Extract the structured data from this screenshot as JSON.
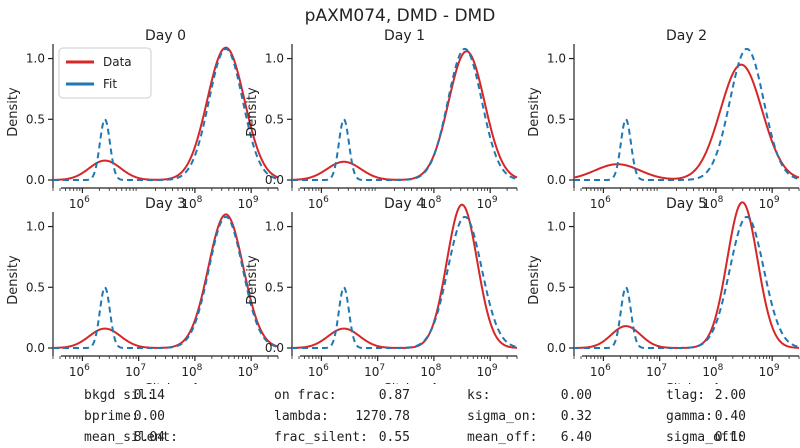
{
  "figure_title": "pAXM074, DMD - DMD",
  "colors": {
    "data": "#d62728",
    "fit": "#1f77b4",
    "axis": "#222222",
    "text": "#222222"
  },
  "legend": {
    "entries": [
      "Data",
      "Fit"
    ],
    "location": "upper-left of first panel"
  },
  "chart_data": [
    {
      "type": "line",
      "title": "Day 0",
      "ylabel": "Density",
      "xlabel": "",
      "xscale": "log",
      "xlim": [
        300000,
        3000000000
      ],
      "ylim": [
        0,
        1.12
      ],
      "xticks": [
        "10^6",
        "10^8",
        "10^9"
      ],
      "yticks": [
        "0.0",
        "0.5",
        "1.0"
      ],
      "series": [
        {
          "name": "Data",
          "style": "solid",
          "peaks": [
            {
              "center_log10": 6.4,
              "width": 0.28,
              "height": 0.16
            },
            {
              "center_log10": 8.55,
              "width": 0.33,
              "height": 1.09
            }
          ]
        },
        {
          "name": "Fit",
          "style": "dashed",
          "peaks": [
            {
              "center_log10": 6.4,
              "width": 0.09,
              "height": 0.5
            },
            {
              "center_log10": 8.55,
              "width": 0.3,
              "height": 1.08
            }
          ]
        }
      ]
    },
    {
      "type": "line",
      "title": "Day 1",
      "ylabel": "Density",
      "xlabel": "",
      "xscale": "log",
      "xlim": [
        300000,
        3000000000
      ],
      "ylim": [
        0,
        1.12
      ],
      "xticks": [
        "10^6",
        "10^8",
        "10^9"
      ],
      "yticks": [
        "0.0",
        "0.5",
        "1.0"
      ],
      "series": [
        {
          "name": "Data",
          "style": "solid",
          "peaks": [
            {
              "center_log10": 6.4,
              "width": 0.3,
              "height": 0.15
            },
            {
              "center_log10": 8.58,
              "width": 0.32,
              "height": 1.06
            }
          ]
        },
        {
          "name": "Fit",
          "style": "dashed",
          "peaks": [
            {
              "center_log10": 6.4,
              "width": 0.09,
              "height": 0.5
            },
            {
              "center_log10": 8.55,
              "width": 0.3,
              "height": 1.08
            }
          ]
        }
      ]
    },
    {
      "type": "line",
      "title": "Day 2",
      "ylabel": "Density",
      "xlabel": "",
      "xscale": "log",
      "xlim": [
        300000,
        3000000000
      ],
      "ylim": [
        0,
        1.12
      ],
      "xticks": [
        "10^6",
        "10^8",
        "10^9"
      ],
      "yticks": [
        "0.0",
        "0.5",
        "1.0"
      ],
      "series": [
        {
          "name": "Data",
          "style": "solid",
          "peaks": [
            {
              "center_log10": 6.25,
              "width": 0.4,
              "height": 0.13
            },
            {
              "center_log10": 8.45,
              "width": 0.37,
              "height": 0.95
            }
          ]
        },
        {
          "name": "Fit",
          "style": "dashed",
          "peaks": [
            {
              "center_log10": 6.4,
              "width": 0.09,
              "height": 0.5
            },
            {
              "center_log10": 8.55,
              "width": 0.3,
              "height": 1.08
            }
          ]
        }
      ]
    },
    {
      "type": "line",
      "title": "Day 3",
      "ylabel": "Density",
      "xlabel": "mCitrine-A",
      "xscale": "log",
      "xlim": [
        300000,
        3000000000
      ],
      "ylim": [
        0,
        1.12
      ],
      "xticks": [
        "10^6",
        "10^7",
        "10^8",
        "10^9"
      ],
      "yticks": [
        "0.0",
        "0.5",
        "1.0"
      ],
      "series": [
        {
          "name": "Data",
          "style": "solid",
          "peaks": [
            {
              "center_log10": 6.4,
              "width": 0.28,
              "height": 0.16
            },
            {
              "center_log10": 8.55,
              "width": 0.31,
              "height": 1.1
            }
          ]
        },
        {
          "name": "Fit",
          "style": "dashed",
          "peaks": [
            {
              "center_log10": 6.4,
              "width": 0.09,
              "height": 0.5
            },
            {
              "center_log10": 8.55,
              "width": 0.3,
              "height": 1.08
            }
          ]
        }
      ]
    },
    {
      "type": "line",
      "title": "Day 4",
      "ylabel": "Density",
      "xlabel": "mCitrine-A",
      "xscale": "log",
      "xlim": [
        300000,
        3000000000
      ],
      "ylim": [
        0,
        1.12
      ],
      "xticks": [
        "10^6",
        "10^7",
        "10^8",
        "10^9"
      ],
      "yticks": [
        "0.0",
        "0.5",
        "1.0"
      ],
      "series": [
        {
          "name": "Data",
          "style": "solid",
          "peaks": [
            {
              "center_log10": 6.4,
              "width": 0.28,
              "height": 0.16
            },
            {
              "center_log10": 8.5,
              "width": 0.27,
              "height": 1.18
            }
          ]
        },
        {
          "name": "Fit",
          "style": "dashed",
          "peaks": [
            {
              "center_log10": 6.4,
              "width": 0.09,
              "height": 0.5
            },
            {
              "center_log10": 8.55,
              "width": 0.3,
              "height": 1.08
            }
          ]
        }
      ]
    },
    {
      "type": "line",
      "title": "Day 5",
      "ylabel": "Density",
      "xlabel": "mCitrine-A",
      "xscale": "log",
      "xlim": [
        300000,
        3000000000
      ],
      "ylim": [
        0,
        1.12
      ],
      "xticks": [
        "10^6",
        "10^7",
        "10^8",
        "10^9"
      ],
      "yticks": [
        "0.0",
        "0.5",
        "1.0"
      ],
      "series": [
        {
          "name": "Data",
          "style": "solid",
          "peaks": [
            {
              "center_log10": 6.4,
              "width": 0.26,
              "height": 0.18
            },
            {
              "center_log10": 8.47,
              "width": 0.27,
              "height": 1.2
            }
          ]
        },
        {
          "name": "Fit",
          "style": "dashed",
          "peaks": [
            {
              "center_log10": 6.4,
              "width": 0.09,
              "height": 0.5
            },
            {
              "center_log10": 8.55,
              "width": 0.3,
              "height": 1.08
            }
          ]
        }
      ]
    }
  ],
  "params": [
    {
      "label": "bkgd sil:",
      "value": "0.14"
    },
    {
      "label": "on frac:",
      "value": "0.87"
    },
    {
      "label": "ks:",
      "value": "0.00"
    },
    {
      "label": "tlag:",
      "value": "2.00"
    },
    {
      "label": "bprime:",
      "value": "0.00"
    },
    {
      "label": "lambda:",
      "value": "1270.78"
    },
    {
      "label": "sigma_on:",
      "value": "0.32"
    },
    {
      "label": "gamma:",
      "value": "0.40"
    },
    {
      "label": "mean_silent:",
      "value": "8.04"
    },
    {
      "label": "frac_silent:",
      "value": "0.55"
    },
    {
      "label": "mean_off:",
      "value": "6.40"
    },
    {
      "label": "sigma_off:",
      "value": "0.10"
    }
  ]
}
